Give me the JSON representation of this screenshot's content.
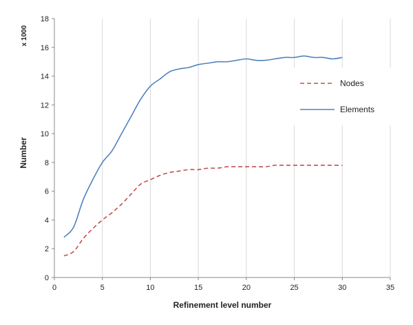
{
  "chart_data": {
    "type": "line",
    "title": "",
    "xlabel": "Refinement level number",
    "ylabel": "Number",
    "y_scale_note": "x 1000",
    "xlim": [
      0,
      35
    ],
    "ylim": [
      0,
      18
    ],
    "xticks": [
      0,
      5,
      10,
      15,
      20,
      25,
      30,
      35
    ],
    "yticks": [
      0,
      2,
      4,
      6,
      8,
      10,
      12,
      14,
      16,
      18
    ],
    "grid": "vertical",
    "legend_position": "right",
    "series": [
      {
        "name": "Nodes",
        "color": "#c0504d",
        "style": "dashed",
        "x": [
          1,
          2,
          3,
          4,
          5,
          6,
          7,
          8,
          9,
          10,
          11,
          12,
          13,
          14,
          15,
          16,
          17,
          18,
          19,
          20,
          21,
          22,
          23,
          24,
          25,
          26,
          27,
          28,
          29,
          30
        ],
        "y": [
          1.5,
          1.8,
          2.7,
          3.4,
          4.0,
          4.5,
          5.1,
          5.8,
          6.5,
          6.8,
          7.1,
          7.3,
          7.4,
          7.5,
          7.5,
          7.6,
          7.6,
          7.7,
          7.7,
          7.7,
          7.7,
          7.7,
          7.8,
          7.8,
          7.8,
          7.8,
          7.8,
          7.8,
          7.8,
          7.8
        ]
      },
      {
        "name": "Elements",
        "color": "#4f81bd",
        "style": "solid",
        "x": [
          1,
          2,
          3,
          4,
          5,
          6,
          7,
          8,
          9,
          10,
          11,
          12,
          13,
          14,
          15,
          16,
          17,
          18,
          19,
          20,
          21,
          22,
          23,
          24,
          25,
          26,
          27,
          28,
          29,
          30
        ],
        "y": [
          2.8,
          3.5,
          5.4,
          6.8,
          8.0,
          8.8,
          10.0,
          11.2,
          12.4,
          13.3,
          13.8,
          14.3,
          14.5,
          14.6,
          14.8,
          14.9,
          15.0,
          15.0,
          15.1,
          15.2,
          15.1,
          15.1,
          15.2,
          15.3,
          15.3,
          15.4,
          15.3,
          15.3,
          15.2,
          15.3
        ]
      }
    ]
  }
}
